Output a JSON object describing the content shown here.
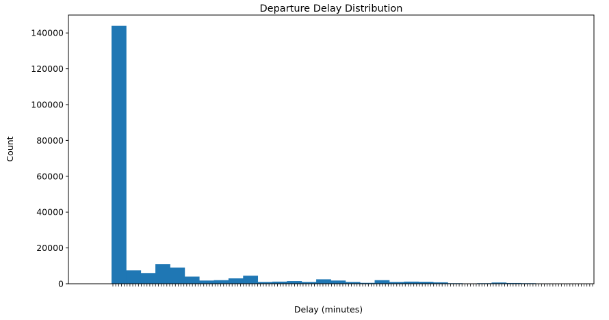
{
  "chart_data": {
    "type": "bar",
    "title": "Departure Delay Distribution",
    "xlabel": "Delay (minutes)",
    "ylabel": "Count",
    "ylim": [
      0,
      150000
    ],
    "yticks": [
      0,
      20000,
      40000,
      60000,
      80000,
      100000,
      120000,
      140000
    ],
    "ytick_labels": [
      "0",
      "20000",
      "40000",
      "60000",
      "80000",
      "100000",
      "120000",
      "140000"
    ],
    "grid": false,
    "legend": "none",
    "color": "#1f77b4",
    "values": [
      144000,
      7500,
      6000,
      11000,
      9000,
      4000,
      1800,
      2000,
      3000,
      4500,
      1000,
      1200,
      1500,
      1000,
      2500,
      1800,
      1000,
      500,
      2000,
      1000,
      1200,
      1100,
      800,
      300,
      200,
      300,
      700,
      400,
      300,
      200,
      150,
      150,
      100
    ]
  }
}
